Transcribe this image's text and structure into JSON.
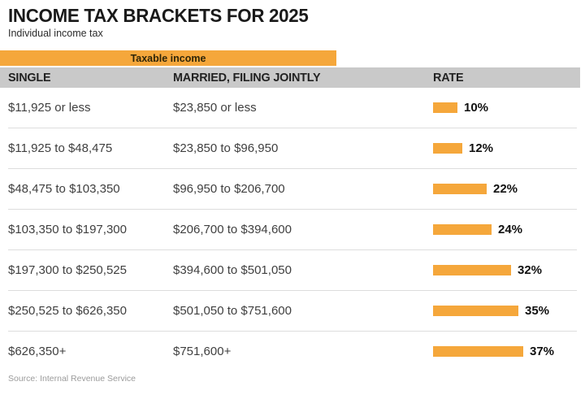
{
  "header": {
    "title": "INCOME TAX BRACKETS FOR 2025",
    "subtitle": "Individual income tax"
  },
  "table": {
    "group_label": "Taxable income",
    "columns": {
      "single": "SINGLE",
      "married": "MARRIED, FILING JOINTLY",
      "rate": "RATE"
    },
    "rows": [
      {
        "single": "$11,925 or less",
        "married": "$23,850 or less",
        "rate_label": "10%",
        "rate": 10
      },
      {
        "single": "$11,925 to $48,475",
        "married": "$23,850 to $96,950",
        "rate_label": "12%",
        "rate": 12
      },
      {
        "single": "$48,475 to $103,350",
        "married": "$96,950 to $206,700",
        "rate_label": "22%",
        "rate": 22
      },
      {
        "single": "$103,350 to $197,300",
        "married": "$206,700 to $394,600",
        "rate_label": "24%",
        "rate": 24
      },
      {
        "single": "$197,300 to $250,525",
        "married": "$394,600 to $501,050",
        "rate_label": "32%",
        "rate": 32
      },
      {
        "single": "$250,525 to $626,350",
        "married": "$501,050 to $751,600",
        "rate_label": "35%",
        "rate": 35
      },
      {
        "single": "$626,350+",
        "married": "$751,600+",
        "rate_label": "37%",
        "rate": 37
      }
    ]
  },
  "footer": {
    "source": "Source: Internal Revenue Service"
  },
  "colors": {
    "accent_orange": "#F5A73B",
    "header_gray": "#C9C9C9",
    "divider": "#DDDDDD",
    "text_dark": "#1A1A1A",
    "text_row": "#3F3F3F",
    "text_source": "#9B9B9B"
  },
  "chart_data": {
    "type": "bar",
    "title": "INCOME TAX BRACKETS FOR 2025",
    "subtitle": "Individual income tax",
    "group_header": "Taxable income",
    "columns": [
      "SINGLE",
      "MARRIED, FILING JOINTLY",
      "RATE"
    ],
    "categories_single": [
      "$11,925 or less",
      "$11,925 to $48,475",
      "$48,475 to $103,350",
      "$103,350 to $197,300",
      "$197,300 to $250,525",
      "$250,525 to $626,350",
      "$626,350+"
    ],
    "categories_married": [
      "$23,850 or less",
      "$23,850 to $96,950",
      "$96,950 to $206,700",
      "$206,700 to $394,600",
      "$394,600 to $501,050",
      "$501,050 to $751,600",
      "$751,600+"
    ],
    "values": [
      10,
      12,
      22,
      24,
      32,
      35,
      37
    ],
    "unit": "%",
    "xlabel": "",
    "ylabel": "RATE",
    "bar_color": "#F5A73B",
    "orientation": "horizontal",
    "source": "Source: Internal Revenue Service"
  }
}
